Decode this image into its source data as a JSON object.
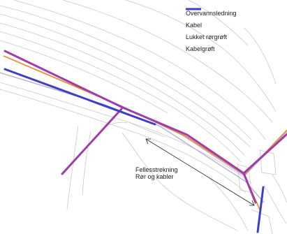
{
  "legend": {
    "items": [
      {
        "label": "Overvannsledning",
        "color": "#f08a24",
        "stroke": "thin"
      },
      {
        "label": "Kabel",
        "color": "#b7aedc",
        "stroke": "thin"
      },
      {
        "label": "Lukket rørgrøft",
        "color": "#a03cab",
        "stroke": "thick"
      },
      {
        "label": "Kabelgrøft",
        "color": "#3f3ec8",
        "stroke": "thick"
      }
    ]
  },
  "annotation": {
    "line1": "Fellesstrekning",
    "line2": "Rør og kabler"
  }
}
